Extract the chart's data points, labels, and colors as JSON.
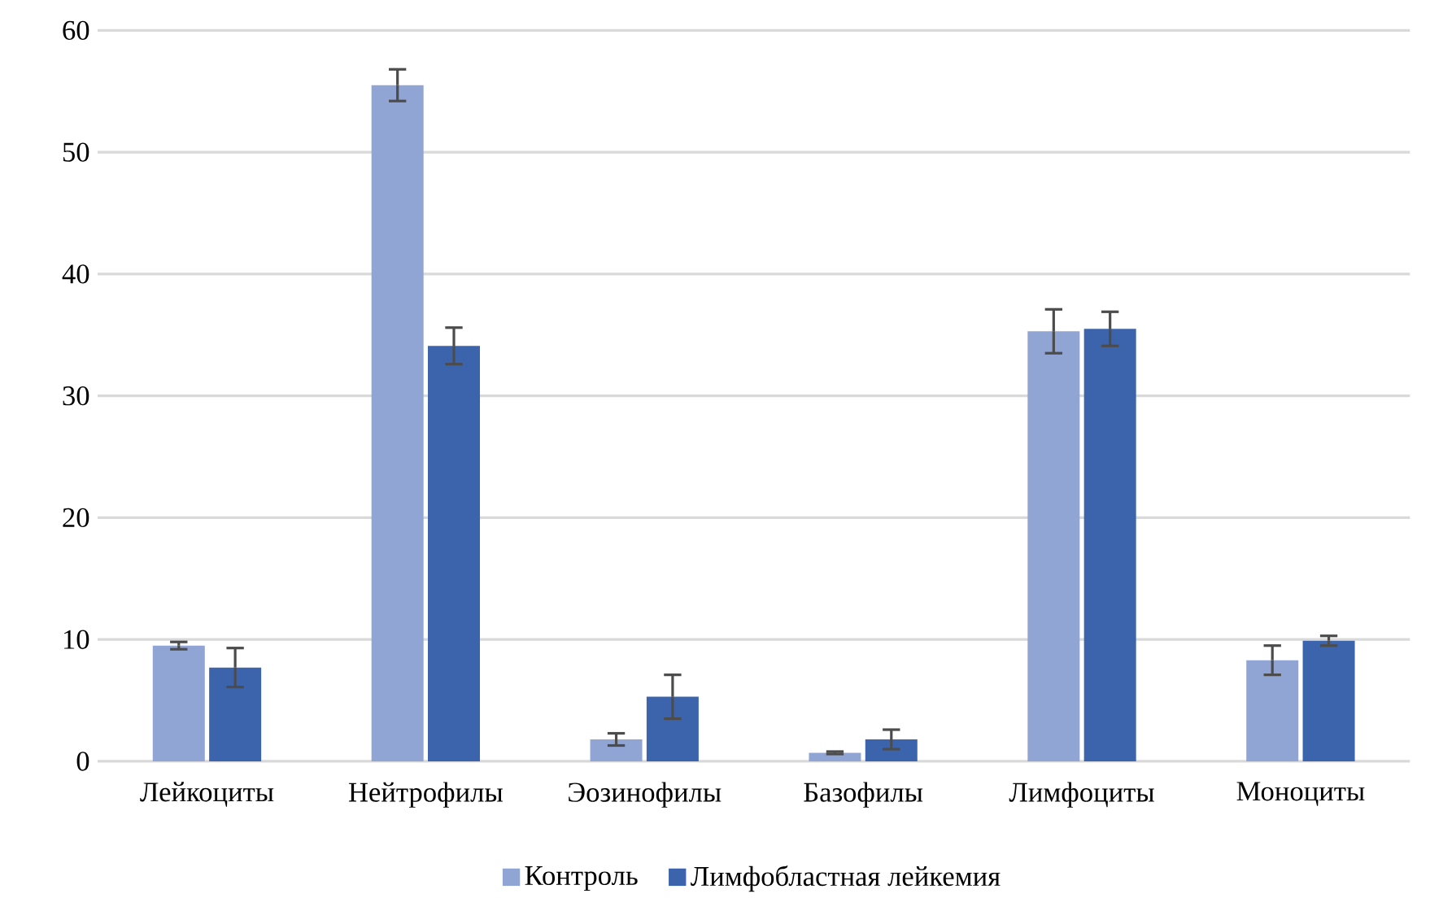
{
  "chart_data": {
    "type": "bar",
    "categories": [
      "Лейкоциты",
      "Нейтрофилы",
      "Эозинофилы",
      "Базофилы",
      "Лимфоциты",
      "Моноциты"
    ],
    "series": [
      {
        "name": "Контроль",
        "color": "#91a5d4",
        "values": [
          9.5,
          55.5,
          1.8,
          0.7,
          35.3,
          8.3
        ],
        "errors": [
          0.3,
          1.3,
          0.5,
          0.1,
          1.8,
          1.2
        ]
      },
      {
        "name": "Лимфобластная лейкемия",
        "color": "#3c64ac",
        "values": [
          7.7,
          34.1,
          5.3,
          1.8,
          35.5,
          9.9
        ],
        "errors": [
          1.6,
          1.5,
          1.8,
          0.8,
          1.4,
          0.4
        ]
      }
    ],
    "ylim": [
      0,
      60
    ],
    "yticks": [
      0,
      10,
      20,
      30,
      40,
      50,
      60
    ],
    "grid": "y",
    "legend": "bottom"
  }
}
